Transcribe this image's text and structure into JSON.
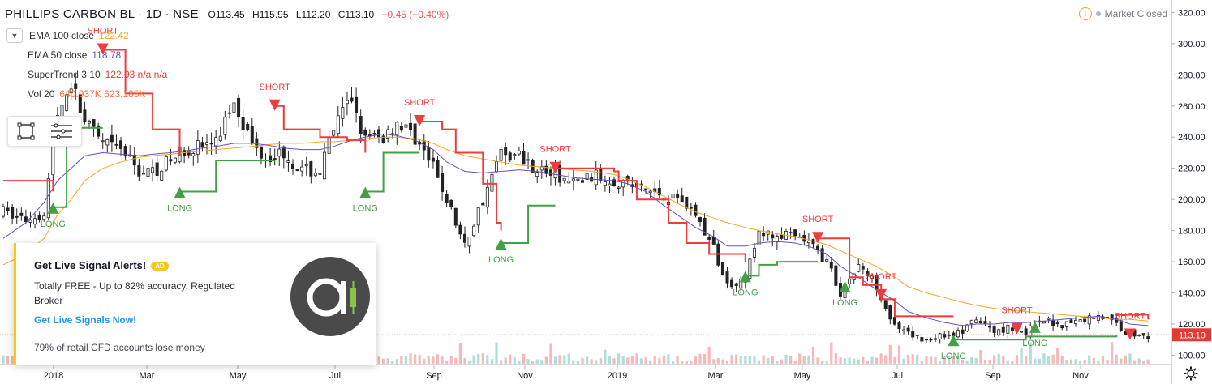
{
  "header": {
    "symbol": "PHILLIPS CARBON BL · 1D · NSE",
    "open": "O113.45",
    "high": "H115.95",
    "low": "L112.20",
    "close": "C113.10",
    "change": "−0.45 (−0.40%)"
  },
  "status": {
    "text": "Market Closed"
  },
  "legend": [
    {
      "label": "EMA 100 close",
      "value": "122.42",
      "color": "#f5a623"
    },
    {
      "label": "EMA 50 close",
      "value": "118.78",
      "color": "#6b4fbb"
    },
    {
      "label": "SuperTrend 3 10",
      "value": "122.93 n/a n/a",
      "color": "#e53935"
    },
    {
      "label": "Vol 20",
      "value": "640.937K  623.185K",
      "color": "#ff7043"
    }
  ],
  "ad": {
    "title": "Get Live Signal Alerts!",
    "badge": "AD",
    "description": "Totally FREE - Up to 82% accuracy, Regulated Broker",
    "cta": "Get Live Signals Now!",
    "disclaimer": "79% of retail CFD accounts lose money"
  },
  "colors": {
    "up": "#26a69a",
    "down": "#ef5350",
    "bar": "#222222",
    "trend_up": "#43a047",
    "trend_down": "#ef3b3b",
    "ema100": "#f5a623",
    "ema50": "#6b4fbb",
    "price_tag": "#e53935"
  },
  "chart_data": {
    "type": "candlestick",
    "yaxis": {
      "ylim": [
        94,
        328
      ],
      "ticks": [
        "100.00",
        "120.00",
        "140.00",
        "160.00",
        "180.00",
        "200.00",
        "220.00",
        "240.00",
        "260.00",
        "280.00",
        "300.00",
        "320.00"
      ]
    },
    "xaxis": {
      "ticks": [
        "2018",
        "Mar",
        "May",
        "Jul",
        "Sep",
        "Nov",
        "2019",
        "Mar",
        "May",
        "Jul",
        "Sep",
        "Nov"
      ]
    },
    "last_price": "113.10",
    "price_series": [
      [
        0,
        192
      ],
      [
        5,
        187
      ],
      [
        9,
        192
      ],
      [
        12,
        255
      ],
      [
        15,
        275
      ],
      [
        18,
        250
      ],
      [
        22,
        235
      ],
      [
        26,
        232
      ],
      [
        30,
        218
      ],
      [
        33,
        218
      ],
      [
        37,
        225
      ],
      [
        40,
        232
      ],
      [
        44,
        235
      ],
      [
        47,
        236
      ],
      [
        51,
        265
      ],
      [
        55,
        235
      ],
      [
        58,
        228
      ],
      [
        62,
        230
      ],
      [
        66,
        218
      ],
      [
        70,
        218
      ],
      [
        73,
        245
      ],
      [
        77,
        265
      ],
      [
        80,
        238
      ],
      [
        84,
        240
      ],
      [
        87,
        250
      ],
      [
        91,
        240
      ],
      [
        95,
        220
      ],
      [
        98,
        200
      ],
      [
        102,
        170
      ],
      [
        106,
        200
      ],
      [
        110,
        230
      ],
      [
        114,
        228
      ],
      [
        118,
        220
      ],
      [
        122,
        215
      ],
      [
        126,
        210
      ],
      [
        130,
        215
      ],
      [
        135,
        213
      ],
      [
        138,
        210
      ],
      [
        142,
        206
      ],
      [
        146,
        203
      ],
      [
        150,
        200
      ],
      [
        153,
        190
      ],
      [
        157,
        168
      ],
      [
        160,
        145
      ],
      [
        164,
        150
      ],
      [
        167,
        178
      ],
      [
        171,
        177
      ],
      [
        175,
        175
      ],
      [
        178,
        172
      ],
      [
        182,
        160
      ],
      [
        185,
        140
      ],
      [
        189,
        158
      ],
      [
        193,
        145
      ],
      [
        197,
        118
      ],
      [
        200,
        113
      ],
      [
        204,
        110
      ],
      [
        208,
        113
      ],
      [
        212,
        115
      ],
      [
        215,
        123
      ],
      [
        219,
        115
      ],
      [
        222,
        118
      ],
      [
        226,
        115
      ],
      [
        230,
        122
      ],
      [
        234,
        120
      ],
      [
        238,
        122
      ],
      [
        242,
        126
      ],
      [
        246,
        120
      ],
      [
        249,
        113
      ],
      [
        253,
        113
      ]
    ],
    "ema100": [
      [
        0,
        158
      ],
      [
        5,
        165
      ],
      [
        9,
        175
      ],
      [
        12,
        190
      ],
      [
        15,
        200
      ],
      [
        18,
        212
      ],
      [
        22,
        220
      ],
      [
        26,
        224
      ],
      [
        30,
        227
      ],
      [
        33,
        228
      ],
      [
        37,
        229
      ],
      [
        40,
        230
      ],
      [
        44,
        231
      ],
      [
        47,
        232
      ],
      [
        51,
        233
      ],
      [
        55,
        234
      ],
      [
        58,
        235
      ],
      [
        62,
        236
      ],
      [
        66,
        236
      ],
      [
        70,
        237
      ],
      [
        73,
        237
      ],
      [
        77,
        238
      ],
      [
        80,
        239
      ],
      [
        84,
        240
      ],
      [
        87,
        240
      ],
      [
        91,
        239
      ],
      [
        95,
        236
      ],
      [
        98,
        232
      ],
      [
        102,
        228
      ],
      [
        106,
        226
      ],
      [
        110,
        224
      ],
      [
        114,
        222
      ],
      [
        118,
        221
      ],
      [
        122,
        220
      ],
      [
        126,
        219
      ],
      [
        130,
        218
      ],
      [
        135,
        216
      ],
      [
        138,
        213
      ],
      [
        142,
        208
      ],
      [
        146,
        202
      ],
      [
        150,
        196
      ],
      [
        153,
        192
      ],
      [
        157,
        188
      ],
      [
        160,
        185
      ],
      [
        164,
        182
      ],
      [
        167,
        180
      ],
      [
        171,
        178
      ],
      [
        175,
        176
      ],
      [
        178,
        174
      ],
      [
        182,
        171
      ],
      [
        185,
        167
      ],
      [
        189,
        162
      ],
      [
        193,
        157
      ],
      [
        197,
        150
      ],
      [
        200,
        144
      ],
      [
        204,
        140
      ],
      [
        208,
        137
      ],
      [
        212,
        134
      ],
      [
        215,
        132
      ],
      [
        219,
        130
      ],
      [
        222,
        129
      ],
      [
        226,
        128
      ],
      [
        230,
        127
      ],
      [
        234,
        126
      ],
      [
        238,
        125
      ],
      [
        242,
        124
      ],
      [
        246,
        123
      ],
      [
        249,
        123
      ],
      [
        253,
        122
      ]
    ],
    "ema50": [
      [
        0,
        175
      ],
      [
        5,
        185
      ],
      [
        9,
        198
      ],
      [
        12,
        212
      ],
      [
        15,
        220
      ],
      [
        18,
        228
      ],
      [
        22,
        230
      ],
      [
        26,
        229
      ],
      [
        30,
        228
      ],
      [
        33,
        229
      ],
      [
        37,
        230
      ],
      [
        40,
        231
      ],
      [
        44,
        233
      ],
      [
        47,
        234
      ],
      [
        51,
        236
      ],
      [
        55,
        236
      ],
      [
        58,
        235
      ],
      [
        62,
        233
      ],
      [
        66,
        232
      ],
      [
        70,
        232
      ],
      [
        73,
        234
      ],
      [
        77,
        238
      ],
      [
        80,
        240
      ],
      [
        84,
        242
      ],
      [
        87,
        241
      ],
      [
        91,
        238
      ],
      [
        95,
        232
      ],
      [
        98,
        224
      ],
      [
        102,
        218
      ],
      [
        106,
        217
      ],
      [
        110,
        218
      ],
      [
        114,
        219
      ],
      [
        118,
        218
      ],
      [
        122,
        216
      ],
      [
        126,
        214
      ],
      [
        130,
        213
      ],
      [
        135,
        212
      ],
      [
        138,
        210
      ],
      [
        142,
        205
      ],
      [
        146,
        196
      ],
      [
        150,
        188
      ],
      [
        153,
        182
      ],
      [
        157,
        176
      ],
      [
        160,
        170
      ],
      [
        164,
        170
      ],
      [
        167,
        172
      ],
      [
        171,
        173
      ],
      [
        175,
        172
      ],
      [
        178,
        170
      ],
      [
        182,
        165
      ],
      [
        185,
        157
      ],
      [
        189,
        150
      ],
      [
        193,
        142
      ],
      [
        197,
        135
      ],
      [
        200,
        128
      ],
      [
        204,
        124
      ],
      [
        208,
        121
      ],
      [
        212,
        119
      ],
      [
        215,
        120
      ],
      [
        219,
        120
      ],
      [
        222,
        121
      ],
      [
        226,
        121
      ],
      [
        230,
        122
      ],
      [
        234,
        123
      ],
      [
        238,
        124
      ],
      [
        242,
        125
      ],
      [
        246,
        123
      ],
      [
        249,
        120
      ],
      [
        253,
        119
      ]
    ],
    "supertrend": [
      {
        "dir": "down",
        "points": [
          [
            0,
            212
          ],
          [
            11,
            205
          ]
        ]
      },
      {
        "dir": "up",
        "points": [
          [
            11,
            195
          ],
          [
            14,
            246
          ],
          [
            22,
            246
          ]
        ]
      },
      {
        "dir": "down",
        "points": [
          [
            22,
            296
          ],
          [
            27,
            268
          ],
          [
            33,
            245
          ],
          [
            39,
            228
          ]
        ]
      },
      {
        "dir": "up",
        "points": [
          [
            39,
            205
          ],
          [
            46,
            205
          ],
          [
            47,
            225
          ],
          [
            55,
            225
          ],
          [
            60,
            225
          ]
        ]
      },
      {
        "dir": "down",
        "points": [
          [
            60,
            260
          ],
          [
            62,
            245
          ],
          [
            70,
            240
          ],
          [
            76,
            238
          ],
          [
            80,
            230
          ]
        ]
      },
      {
        "dir": "up",
        "points": [
          [
            80,
            205
          ],
          [
            84,
            230
          ],
          [
            92,
            230
          ]
        ]
      },
      {
        "dir": "down",
        "points": [
          [
            92,
            250
          ],
          [
            97,
            245
          ],
          [
            100,
            230
          ],
          [
            106,
            210
          ],
          [
            109,
            185
          ],
          [
            110,
            180
          ]
        ]
      },
      {
        "dir": "up",
        "points": [
          [
            110,
            172
          ],
          [
            116,
            196
          ],
          [
            122,
            196
          ]
        ]
      },
      {
        "dir": "down",
        "points": [
          [
            122,
            220
          ],
          [
            130,
            220
          ],
          [
            135,
            218
          ],
          [
            136,
            212
          ],
          [
            140,
            200
          ],
          [
            147,
            185
          ],
          [
            151,
            172
          ],
          [
            156,
            165
          ],
          [
            160,
            165
          ],
          [
            164,
            160
          ]
        ]
      },
      {
        "dir": "up",
        "points": [
          [
            164,
            151
          ],
          [
            167,
            158
          ],
          [
            171,
            160
          ],
          [
            176,
            160
          ],
          [
            180,
            160
          ]
        ]
      },
      {
        "dir": "down",
        "points": [
          [
            180,
            175
          ],
          [
            187,
            150
          ],
          [
            190,
            145
          ],
          [
            194,
            136
          ],
          [
            197,
            125
          ],
          [
            204,
            125
          ],
          [
            210,
            125
          ]
        ]
      },
      {
        "dir": "up",
        "points": [
          [
            210,
            110
          ],
          [
            218,
            110
          ],
          [
            226,
            112
          ],
          [
            234,
            112
          ],
          [
            242,
            112
          ],
          [
            246,
            113
          ]
        ]
      },
      {
        "dir": "down",
        "points": [
          [
            246,
            126
          ],
          [
            253,
            123
          ]
        ]
      }
    ],
    "signals": [
      {
        "type": "LONG",
        "x": 11
      },
      {
        "type": "SHORT",
        "x": 22
      },
      {
        "type": "LONG",
        "x": 39
      },
      {
        "type": "SHORT",
        "x": 60
      },
      {
        "type": "LONG",
        "x": 80
      },
      {
        "type": "SHORT",
        "x": 92
      },
      {
        "type": "LONG",
        "x": 110
      },
      {
        "type": "SHORT",
        "x": 122
      },
      {
        "type": "LONG",
        "x": 164
      },
      {
        "type": "SHORT",
        "x": 180
      },
      {
        "type": "LONG",
        "x": 186
      },
      {
        "type": "SHORT",
        "x": 194
      },
      {
        "type": "LONG",
        "x": 210
      },
      {
        "type": "SHORT",
        "x": 224
      },
      {
        "type": "LONG",
        "x": 228
      },
      {
        "type": "SHORT",
        "x": 249
      }
    ]
  }
}
